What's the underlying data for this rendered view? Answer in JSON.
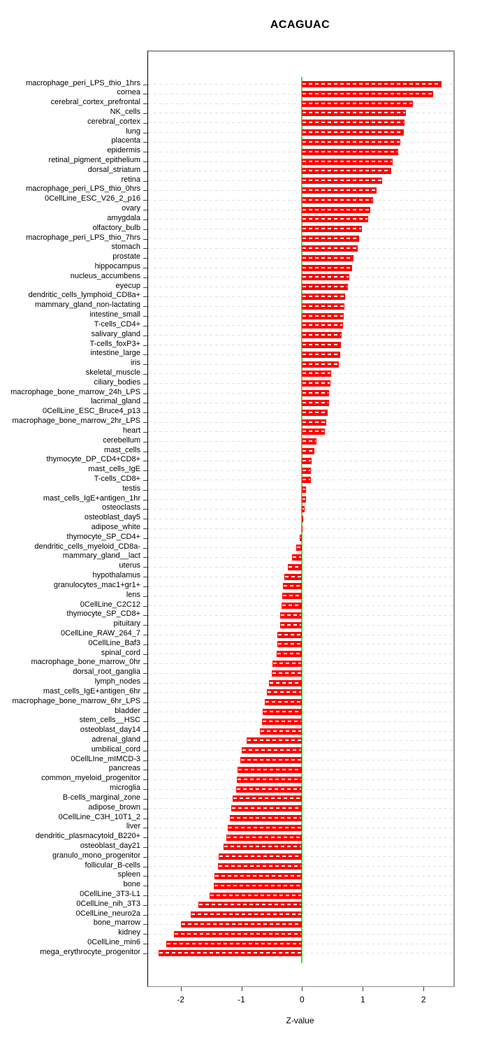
{
  "chart_data": {
    "type": "bar",
    "orientation": "horizontal",
    "title": "ACAGUAC",
    "xlabel": "Z-value",
    "xlim": [
      -2.5,
      2.5
    ],
    "xticks": [
      "-2",
      "-1",
      "0",
      "1",
      "2"
    ],
    "xtick_values": [
      -2,
      -1,
      0,
      1,
      2
    ],
    "grid": "horizontal-dashed",
    "legend": "none",
    "bar_color": "#ff0000",
    "bar_dash_color": "#ffffff",
    "grid_color": "#e0e0e0",
    "zero_line_color": "#4ddc4d",
    "categories": [
      "macrophage_peri_LPS_thio_1hrs",
      "cornea",
      "cerebral_cortex_prefrontal",
      "NK_cells",
      "cerebral_cortex",
      "lung",
      "placenta",
      "epidermis",
      "retinal_pigment_epithelium",
      "dorsal_striatum",
      "retina",
      "macrophage_peri_LPS_thio_0hrs",
      "0CellLine_ESC_V26_2_p16",
      "ovary",
      "amygdala",
      "olfactory_bulb",
      "macrophage_peri_LPS_thio_7hrs",
      "stomach",
      "prostate",
      "hippocampus",
      "nucleus_accumbens",
      "eyecup",
      "dendritic_cells_lymphoid_CD8a+",
      "mammary_gland_non-lactating",
      "intestine_small",
      "T-cells_CD4+",
      "salivary_gland",
      "T-cells_foxP3+",
      "intestine_large",
      "iris",
      "skeletal_muscle",
      "ciliary_bodies",
      "macrophage_bone_marrow_24h_LPS",
      "lacrimal_gland",
      "0CellLine_ESC_Bruce4_p13",
      "macrophage_bone_marrow_2hr_LPS",
      "heart",
      "cerebellum",
      "mast_cells",
      "thymocyte_DP_CD4+CD8+",
      "mast_cells_IgE",
      "T-cells_CD8+",
      "testis",
      "mast_cells_IgE+antigen_1hr",
      "osteoclasts",
      "osteoblast_day5",
      "adipose_white",
      "thymocyte_SP_CD4+",
      "dendritic_cells_myeloid_CD8a-",
      "mammary_gland__lact",
      "uterus",
      "hypothalamus",
      "granulocytes_mac1+gr1+",
      "lens",
      "0CellLine_C2C12",
      "thymocyte_SP_CD8+",
      "pituitary",
      "0CellLine_RAW_264_7",
      "0CellLine_Baf3",
      "spinal_cord",
      "macrophage_bone_marrow_0hr",
      "dorsal_root_ganglia",
      "lymph_nodes",
      "mast_cells_IgE+antigen_6hr",
      "macrophage_bone_marrow_6hr_LPS",
      "bladder",
      "stem_cells__HSC",
      "osteoblast_day14",
      "adrenal_gland",
      "umbilical_cord",
      "0CellLIne_mIMCD-3",
      "pancreas",
      "common_myeloid_progenitor",
      "microglia",
      "B-cells_marginal_zone",
      "adipose_brown",
      "0CellLine_C3H_10T1_2",
      "liver",
      "dendritic_plasmacytoid_B220+",
      "osteoblast_day21",
      "granulo_mono_progenitor",
      "follicular_B-cells",
      "spleen",
      "bone",
      "0CellLine_3T3-L1",
      "0CellLine_nih_3T3",
      "0CellLine_neuro2a",
      "bone_marrow",
      "kidney",
      "0CellLine_min6",
      "mega_erythrocyte_progenitor"
    ],
    "values": [
      2.3,
      2.16,
      1.82,
      1.71,
      1.69,
      1.67,
      1.62,
      1.58,
      1.49,
      1.47,
      1.32,
      1.23,
      1.17,
      1.12,
      1.09,
      0.99,
      0.94,
      0.92,
      0.85,
      0.82,
      0.78,
      0.75,
      0.71,
      0.7,
      0.69,
      0.68,
      0.65,
      0.64,
      0.63,
      0.6,
      0.48,
      0.47,
      0.45,
      0.44,
      0.42,
      0.4,
      0.37,
      0.24,
      0.2,
      0.16,
      0.15,
      0.14,
      0.07,
      0.06,
      0.04,
      0.02,
      0.005,
      -0.04,
      -0.1,
      -0.17,
      -0.24,
      -0.29,
      -0.31,
      -0.33,
      -0.34,
      -0.36,
      -0.36,
      -0.41,
      -0.41,
      -0.42,
      -0.49,
      -0.5,
      -0.54,
      -0.58,
      -0.62,
      -0.65,
      -0.66,
      -0.7,
      -0.91,
      -0.99,
      -1.02,
      -1.06,
      -1.07,
      -1.09,
      -1.14,
      -1.17,
      -1.19,
      -1.23,
      -1.25,
      -1.29,
      -1.37,
      -1.38,
      -1.44,
      -1.45,
      -1.52,
      -1.71,
      -1.84,
      -2.0,
      -2.11,
      -2.24,
      -2.36
    ]
  }
}
